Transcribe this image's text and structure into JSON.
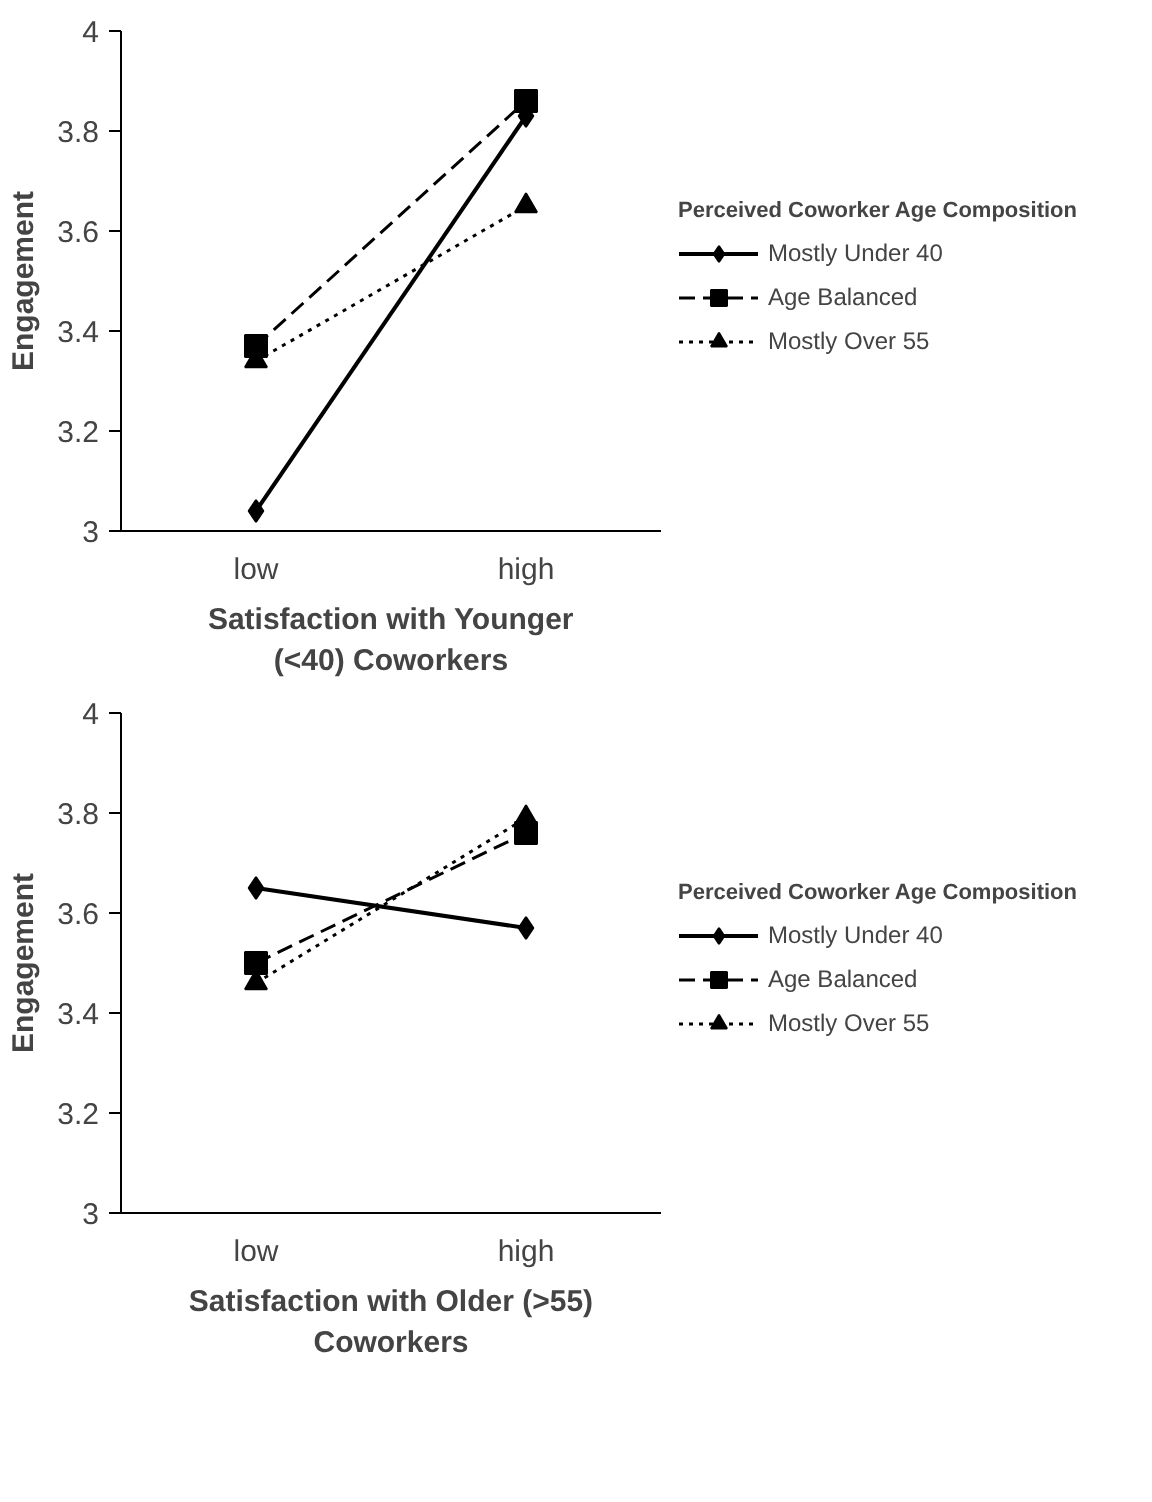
{
  "chart_data": [
    {
      "type": "line",
      "categories": [
        "low",
        "high"
      ],
      "xlabel": "Satisfaction with Younger (<40) Coworkers",
      "ylabel": "Engagement",
      "legend_title": "Perceived Coworker Age Composition",
      "legend": "right",
      "grid": false,
      "ylim": [
        3,
        4
      ],
      "yticks": [
        3,
        {
          "value": 3.2,
          "label": "3.2"
        },
        {
          "value": 3.4,
          "label": "3.4"
        },
        {
          "value": 3.6,
          "label": "3.6"
        },
        {
          "value": 3.8,
          "label": "3.8"
        },
        4
      ],
      "series": [
        {
          "name": "Mostly Under 40",
          "color": "#000000",
          "marker": "diamond",
          "line_style": "solid",
          "values": [
            3.04,
            3.83
          ]
        },
        {
          "name": "Age Balanced",
          "color": "#000000",
          "marker": "square",
          "line_style": "dashed",
          "values": [
            3.37,
            3.86
          ]
        },
        {
          "name": "Mostly Over 55",
          "color": "#000000",
          "marker": "triangle",
          "line_style": "dotted",
          "values": [
            3.34,
            3.65
          ]
        }
      ]
    },
    {
      "type": "line",
      "categories": [
        "low",
        "high"
      ],
      "xlabel": "Satisfaction with Older (>55) Coworkers",
      "ylabel": "Engagement",
      "legend_title": "Perceived Coworker Age Composition",
      "legend": "right",
      "grid": false,
      "ylim": [
        3,
        4
      ],
      "yticks": [
        3,
        {
          "value": 3.2,
          "label": "3.2"
        },
        {
          "value": 3.4,
          "label": "3.4"
        },
        {
          "value": 3.6,
          "label": "3.6"
        },
        {
          "value": 3.8,
          "label": "3.8"
        },
        4
      ],
      "series": [
        {
          "name": "Mostly Under 40",
          "color": "#000000",
          "marker": "diamond",
          "line_style": "solid",
          "values": [
            3.65,
            3.57
          ]
        },
        {
          "name": "Age Balanced",
          "color": "#000000",
          "marker": "square",
          "line_style": "dashed",
          "values": [
            3.5,
            3.76
          ]
        },
        {
          "name": "Mostly Over 55",
          "color": "#000000",
          "marker": "triangle",
          "line_style": "dotted",
          "values": [
            3.46,
            3.79
          ]
        }
      ]
    }
  ]
}
